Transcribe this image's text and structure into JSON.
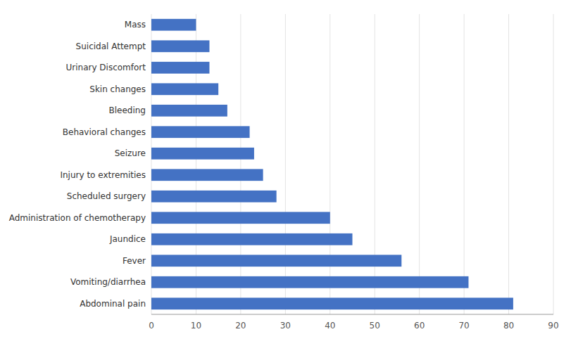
{
  "chart_data": {
    "type": "bar",
    "orientation": "horizontal",
    "categories": [
      "Abdominal pain",
      "Vomiting/diarrhea",
      "Fever",
      "Jaundice",
      "Administration of chemotherapy",
      "Scheduled surgery",
      "Injury to extremities",
      "Seizure",
      "Behavioral changes",
      "Bleeding",
      "Skin changes",
      "Urinary Discomfort",
      "Suicidal Attempt",
      "Mass"
    ],
    "values": [
      81,
      71,
      56,
      45,
      40,
      28,
      25,
      23,
      22,
      17,
      15,
      13,
      13,
      10
    ],
    "color": "#4472c4",
    "xlim": [
      0,
      90
    ],
    "xticks": [
      0,
      10,
      20,
      30,
      40,
      50,
      60,
      70,
      80,
      90
    ],
    "grid": true
  }
}
